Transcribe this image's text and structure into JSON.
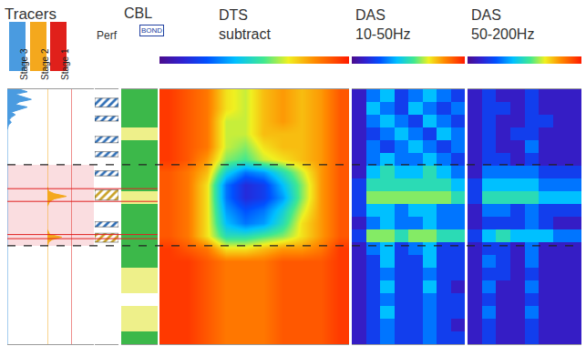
{
  "chart_data": [
    {
      "type": "line",
      "title": "Tracers",
      "ylim": [
        0,
        100
      ],
      "tick_labels": false,
      "zone": {
        "top": 29.6,
        "bottom": 61.4
      },
      "markers": [
        39,
        44,
        57,
        58.6
      ],
      "series": [
        {
          "name": "Stage 3",
          "color": "#4a9be0",
          "xlim": [
            0,
            10
          ],
          "depth": [
            0,
            1,
            2,
            3,
            4,
            5,
            6,
            7,
            8,
            9,
            10,
            11,
            12,
            13,
            14,
            16,
            20,
            100
          ],
          "values": [
            3,
            5,
            2,
            4,
            6,
            3,
            2,
            5,
            3,
            1,
            2,
            1,
            0.5,
            1,
            0.3,
            0,
            0,
            0
          ]
        },
        {
          "name": "Stage 2",
          "color": "#f4a81d",
          "xlim": [
            0,
            10
          ],
          "depth": [
            0,
            38,
            40,
            41,
            42,
            43,
            44,
            46,
            55,
            57,
            58,
            59,
            60,
            62,
            100
          ],
          "values": [
            0,
            0,
            0.5,
            3,
            8,
            3,
            1,
            0,
            0,
            1,
            6,
            2,
            0.5,
            0,
            0
          ]
        },
        {
          "name": "Stage 1",
          "color": "#e0201b",
          "xlim": [
            0,
            10
          ],
          "depth": [
            0,
            100
          ],
          "values": [
            0,
            0
          ]
        }
      ]
    },
    {
      "type": "bar",
      "title": "Perf",
      "orientation": "horizontal",
      "xlim": [
        0,
        1
      ],
      "tick_labels": false,
      "intervals": [
        {
          "top": 3.5,
          "bottom": 7,
          "color": "#2f6fb7"
        },
        {
          "top": 10.5,
          "bottom": 12.5,
          "color": "#2f6fb7"
        },
        {
          "top": 18.5,
          "bottom": 21,
          "color": "#2f6fb7"
        },
        {
          "top": 24.5,
          "bottom": 26.5,
          "color": "#2f6fb7"
        },
        {
          "top": 32,
          "bottom": 34,
          "color": "#2f6fb7"
        },
        {
          "top": 39.5,
          "bottom": 43.5,
          "color": "#c9a227"
        },
        {
          "top": 52,
          "bottom": 54,
          "color": "#2f6fb7"
        },
        {
          "top": 56.5,
          "bottom": 60,
          "color": "#c9a227"
        }
      ]
    },
    {
      "type": "heatmap",
      "title": "CBL",
      "subtitle": "BOND",
      "tick_labels": false,
      "zlim": [
        0,
        2
      ],
      "colors": [
        "#ffffff",
        "#eef08a",
        "#3cb84a"
      ],
      "y": [
        2.5,
        7.5,
        12.5,
        17.5,
        22.5,
        27.5,
        32.5,
        37.5,
        42.5,
        47.5,
        52.5,
        57.5,
        62.5,
        67.5,
        72.5,
        77.5,
        82.5,
        87.5,
        92.5,
        97.5
      ],
      "z": [
        [
          2
        ],
        [
          2
        ],
        [
          2
        ],
        [
          1
        ],
        [
          2
        ],
        [
          2
        ],
        [
          2
        ],
        [
          2
        ],
        [
          1
        ],
        [
          2
        ],
        [
          2
        ],
        [
          2
        ],
        [
          2
        ],
        [
          2
        ],
        [
          1
        ],
        [
          1
        ],
        [
          0
        ],
        [
          1
        ],
        [
          1
        ],
        [
          2
        ]
      ]
    },
    {
      "type": "heatmap",
      "title": "DTS subtract",
      "tick_labels": false,
      "zlim": [
        0,
        10
      ],
      "y": [
        2.5,
        7.5,
        12.5,
        17.5,
        22.5,
        27.5,
        32.5,
        37.5,
        42.5,
        47.5,
        52.5,
        57.5,
        62.5,
        67.5,
        72.5,
        77.5,
        82.5,
        87.5,
        92.5,
        97.5
      ],
      "z": [
        [
          9.5,
          9,
          8.5,
          7,
          6.5,
          7.5,
          8,
          7.5,
          8,
          9
        ],
        [
          9.5,
          9,
          8.5,
          7,
          6.5,
          7.5,
          8,
          7.5,
          8,
          9
        ],
        [
          9.5,
          9,
          8.5,
          6.5,
          6.5,
          7.5,
          8,
          7.5,
          8,
          9
        ],
        [
          9.5,
          9,
          8.5,
          6.5,
          6.5,
          7.5,
          7.5,
          7.5,
          8,
          9
        ],
        [
          9.5,
          9,
          8.5,
          6.5,
          6,
          7,
          7.5,
          7.5,
          8,
          9
        ],
        [
          9.5,
          9,
          8,
          6,
          5.5,
          6.5,
          7,
          7.5,
          8,
          9
        ],
        [
          9,
          8.5,
          7.5,
          4.5,
          3,
          3.5,
          5,
          6.5,
          8,
          9
        ],
        [
          9,
          8.5,
          7,
          3,
          1.5,
          2,
          4,
          6,
          8,
          9
        ],
        [
          9,
          8.5,
          7,
          3,
          1.5,
          2,
          3.5,
          6,
          8,
          9
        ],
        [
          9,
          8.5,
          7,
          3.5,
          2.5,
          3,
          4.5,
          6.5,
          8,
          9
        ],
        [
          9,
          8.5,
          7,
          4,
          3,
          3.5,
          5,
          7,
          8,
          9
        ],
        [
          9,
          8.5,
          7,
          5,
          5,
          5.5,
          6,
          7,
          8,
          9
        ],
        [
          9.5,
          9,
          8.5,
          7,
          7,
          7.5,
          8,
          8,
          8.5,
          9.5
        ],
        [
          9.5,
          9.5,
          9,
          8.5,
          8.5,
          8.5,
          9,
          9,
          9,
          9.5
        ],
        [
          9.5,
          9.5,
          9,
          8.5,
          8.5,
          8.5,
          9,
          9,
          9,
          9.5
        ],
        [
          9.5,
          9.5,
          9,
          8.5,
          8.5,
          8.5,
          9,
          9,
          9,
          9.5
        ],
        [
          9.5,
          9.5,
          9,
          8.5,
          8.5,
          8.5,
          9,
          9,
          9,
          9.5
        ],
        [
          9.5,
          9.5,
          9,
          8.5,
          8.5,
          8.5,
          9,
          9,
          9,
          9.5
        ],
        [
          9.5,
          9.5,
          9,
          8.5,
          8.5,
          8.5,
          9,
          9,
          9,
          9.5
        ],
        [
          9.5,
          9.5,
          9,
          8.5,
          8.5,
          8.5,
          9,
          9,
          9,
          9.5
        ]
      ]
    },
    {
      "type": "heatmap",
      "title": "DAS 10-50Hz",
      "tick_labels": false,
      "zlim": [
        0,
        10
      ],
      "y": [
        2.5,
        7.5,
        12.5,
        17.5,
        22.5,
        27.5,
        32.5,
        37.5,
        42.5,
        47.5,
        52.5,
        57.5,
        62.5,
        67.5,
        72.5,
        77.5,
        82.5,
        87.5,
        92.5,
        97.5
      ],
      "z": [
        [
          1,
          3,
          4,
          2,
          3,
          4,
          3,
          2
        ],
        [
          1,
          4,
          3,
          2,
          4,
          3,
          2,
          3
        ],
        [
          1,
          3,
          4,
          3,
          2,
          4,
          3,
          2
        ],
        [
          1,
          2,
          3,
          4,
          3,
          2,
          4,
          3
        ],
        [
          1,
          3,
          2,
          3,
          4,
          3,
          2,
          3
        ],
        [
          1,
          3,
          4,
          3,
          3,
          4,
          3,
          2
        ],
        [
          1,
          4,
          5,
          4,
          4,
          5,
          4,
          3
        ],
        [
          2,
          5,
          5,
          5,
          5,
          5,
          5,
          4
        ],
        [
          2,
          6,
          6,
          6,
          6,
          6,
          6,
          5
        ],
        [
          2,
          4,
          4,
          3,
          4,
          4,
          3,
          3
        ],
        [
          1,
          3,
          4,
          3,
          3,
          4,
          3,
          3
        ],
        [
          2,
          6,
          6,
          5,
          6,
          6,
          5,
          5
        ],
        [
          1,
          3,
          4,
          2,
          3,
          4,
          2,
          2
        ],
        [
          1,
          2,
          4,
          2,
          2,
          4,
          2,
          2
        ],
        [
          1,
          2,
          3,
          2,
          2,
          3,
          2,
          2
        ],
        [
          1,
          2,
          4,
          2,
          2,
          4,
          2,
          1
        ],
        [
          1,
          2,
          3,
          2,
          2,
          3,
          2,
          2
        ],
        [
          1,
          2,
          4,
          2,
          2,
          3,
          2,
          2
        ],
        [
          1,
          2,
          3,
          2,
          2,
          3,
          2,
          1
        ],
        [
          1,
          2,
          3,
          2,
          2,
          3,
          2,
          2
        ]
      ]
    },
    {
      "type": "heatmap",
      "title": "DAS 50-200Hz",
      "tick_labels": false,
      "zlim": [
        0,
        10
      ],
      "y": [
        2.5,
        7.5,
        12.5,
        17.5,
        22.5,
        27.5,
        32.5,
        37.5,
        42.5,
        47.5,
        52.5,
        57.5,
        62.5,
        67.5,
        72.5,
        77.5,
        82.5,
        87.5,
        92.5,
        97.5
      ],
      "z": [
        [
          1,
          2,
          1,
          1,
          2,
          1,
          1,
          1
        ],
        [
          1,
          2,
          2,
          1,
          2,
          1,
          1,
          1
        ],
        [
          1,
          2,
          1,
          1,
          2,
          2,
          1,
          1
        ],
        [
          1,
          2,
          1,
          2,
          2,
          1,
          1,
          1
        ],
        [
          1,
          2,
          1,
          1,
          3,
          1,
          1,
          1
        ],
        [
          1,
          2,
          2,
          1,
          2,
          1,
          1,
          1
        ],
        [
          1,
          3,
          3,
          3,
          3,
          2,
          2,
          2
        ],
        [
          2,
          4,
          4,
          4,
          4,
          3,
          3,
          3
        ],
        [
          2,
          5,
          5,
          5,
          5,
          4,
          4,
          4
        ],
        [
          1,
          3,
          3,
          2,
          3,
          2,
          2,
          2
        ],
        [
          1,
          2,
          2,
          2,
          3,
          2,
          1,
          1
        ],
        [
          2,
          4,
          5,
          4,
          4,
          4,
          3,
          3
        ],
        [
          1,
          2,
          2,
          1,
          3,
          1,
          1,
          1
        ],
        [
          1,
          3,
          2,
          1,
          3,
          1,
          1,
          1
        ],
        [
          1,
          2,
          2,
          1,
          2,
          1,
          1,
          1
        ],
        [
          1,
          3,
          1,
          1,
          3,
          1,
          1,
          1
        ],
        [
          1,
          2,
          1,
          1,
          2,
          1,
          1,
          1
        ],
        [
          1,
          3,
          1,
          1,
          3,
          1,
          1,
          1
        ],
        [
          1,
          2,
          1,
          1,
          2,
          1,
          1,
          1
        ],
        [
          1,
          2,
          1,
          1,
          2,
          1,
          1,
          1
        ]
      ]
    }
  ]
}
